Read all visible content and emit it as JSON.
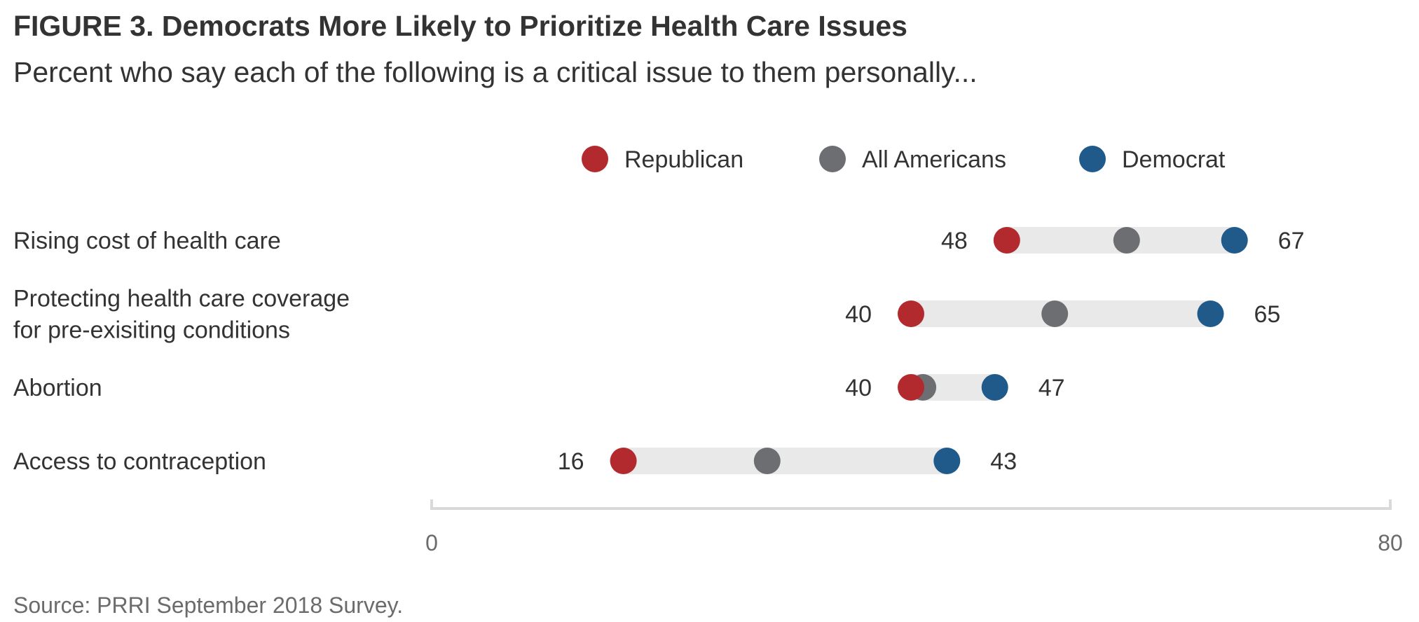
{
  "header": {
    "title": "FIGURE 3.  Democrats More Likely to Prioritize Health Care Issues",
    "subtitle": "Percent who say each of the following is a critical issue to them personally..."
  },
  "footer": {
    "source": "Source: PRRI September 2018 Survey."
  },
  "chart_data": {
    "type": "dot-range",
    "title": "FIGURE 3.  Democrats More Likely to Prioritize Health Care Issues",
    "subtitle": "Percent who say each of the following is a critical issue to them personally...",
    "xlim": [
      0,
      80
    ],
    "x_ticks": [
      "0",
      "80"
    ],
    "legend_position": "top",
    "colors": {
      "Republican": "#b22a2e",
      "All Americans": "#6d6e71",
      "Democrat": "#1f5a8a",
      "range_bar": "#e8e9e8",
      "axis": "#d9d9d9"
    },
    "series": [
      {
        "name": "Republican",
        "values": [
          48,
          40,
          40,
          16
        ]
      },
      {
        "name": "All Americans",
        "values": [
          58,
          52,
          41,
          28
        ]
      },
      {
        "name": "Democrat",
        "values": [
          67,
          65,
          47,
          43
        ]
      }
    ],
    "categories": [
      [
        "Rising cost of health care"
      ],
      [
        "Protecting health care coverage",
        "for pre-exisiting conditions"
      ],
      [
        "Abortion"
      ],
      [
        "Access to contraception"
      ]
    ],
    "data_labels": [
      {
        "low": "48",
        "high": "67"
      },
      {
        "low": "40",
        "high": "65"
      },
      {
        "low": "40",
        "high": "47"
      },
      {
        "low": "16",
        "high": "43"
      }
    ]
  }
}
